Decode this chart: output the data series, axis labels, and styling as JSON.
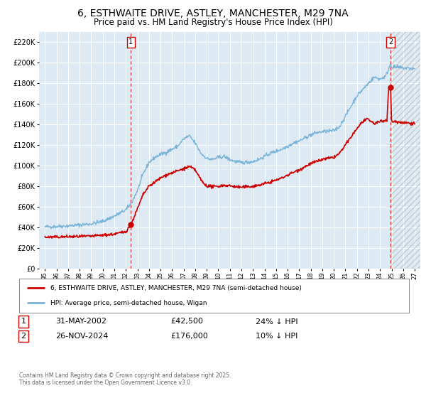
{
  "title": "6, ESTHWAITE DRIVE, ASTLEY, MANCHESTER, M29 7NA",
  "subtitle": "Price paid vs. HM Land Registry's House Price Index (HPI)",
  "title_fontsize": 10,
  "subtitle_fontsize": 8.5,
  "bg_color": "#ddeaf4",
  "fig_bg_color": "#ffffff",
  "hpi_color": "#7ab4d8",
  "price_color": "#cc0000",
  "marker_color": "#cc0000",
  "vline_color": "#cc0000",
  "ylim": [
    0,
    230000
  ],
  "yticks": [
    0,
    20000,
    40000,
    60000,
    80000,
    100000,
    120000,
    140000,
    160000,
    180000,
    200000,
    220000
  ],
  "xlim_start": 1994.5,
  "xlim_end": 2027.5,
  "xticks": [
    1995,
    1996,
    1997,
    1998,
    1999,
    2000,
    2001,
    2002,
    2003,
    2004,
    2005,
    2006,
    2007,
    2008,
    2009,
    2010,
    2011,
    2012,
    2013,
    2014,
    2015,
    2016,
    2017,
    2018,
    2019,
    2020,
    2021,
    2022,
    2023,
    2024,
    2025,
    2026,
    2027
  ],
  "transaction1_date": 2002.42,
  "transaction1_price": 42500,
  "transaction2_date": 2024.91,
  "transaction2_price": 176000,
  "legend_line1": "6, ESTHWAITE DRIVE, ASTLEY, MANCHESTER, M29 7NA (semi-detached house)",
  "legend_line2": "HPI: Average price, semi-detached house, Wigan",
  "annotation1_date": "31-MAY-2002",
  "annotation1_price": "£42,500",
  "annotation1_hpi": "24% ↓ HPI",
  "annotation2_date": "26-NOV-2024",
  "annotation2_price": "£176,000",
  "annotation2_hpi": "10% ↓ HPI",
  "footer": "Contains HM Land Registry data © Crown copyright and database right 2025.\nThis data is licensed under the Open Government Licence v3.0."
}
